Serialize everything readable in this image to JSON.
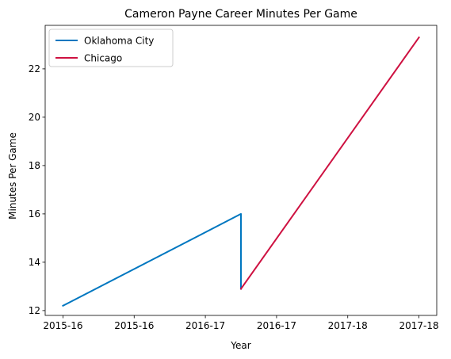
{
  "chart_data": {
    "type": "line",
    "title": "Cameron Payne Career Minutes Per Game",
    "xlabel": "Year",
    "ylabel": "Minutes Per Game",
    "x_tick_labels": [
      "2015-16",
      "2015-16",
      "2016-17",
      "2016-17",
      "2017-18",
      "2017-18"
    ],
    "x_tick_values": [
      0,
      0.4,
      0.8,
      1.2,
      1.6,
      2.0
    ],
    "xlim": [
      -0.1,
      2.1
    ],
    "ylim": [
      11.8,
      23.8
    ],
    "y_ticks": [
      12,
      14,
      16,
      18,
      20,
      22
    ],
    "grid": false,
    "legend_position": "top-left",
    "series": [
      {
        "name": "Oklahoma City",
        "color": "#0077c0",
        "points": [
          {
            "x": 0,
            "y": 12.2
          },
          {
            "x": 1,
            "y": 16.0
          },
          {
            "x": 1,
            "y": 12.9
          }
        ]
      },
      {
        "name": "Chicago",
        "color": "#ce1141",
        "points": [
          {
            "x": 1,
            "y": 12.9
          },
          {
            "x": 2,
            "y": 23.3
          }
        ]
      }
    ]
  }
}
